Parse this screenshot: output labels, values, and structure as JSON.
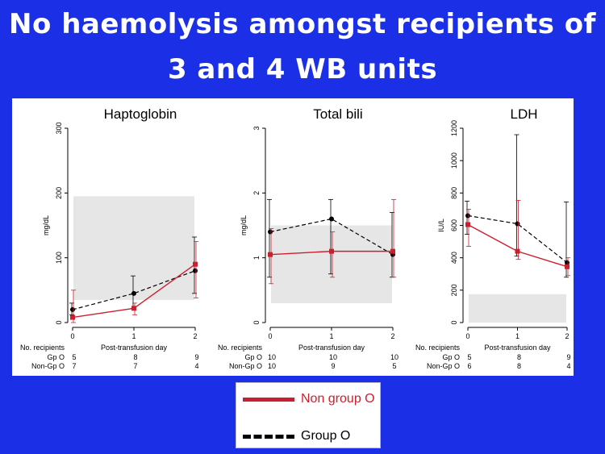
{
  "header": {
    "title_line1": "No haemolysis amongst recipients of",
    "title_line2": "3 and 4 WB units"
  },
  "legend": {
    "non_group_o": "Non group O",
    "group_o": "Group O",
    "colors": {
      "non_group_o": "#cc1f2e",
      "group_o": "#000000",
      "reference_band": "#e6e6e6"
    }
  },
  "chart_data": [
    {
      "type": "line",
      "title": "Haptoglobin",
      "xlabel": "Post-transfusion day",
      "ylabel": "mg/dL",
      "x": [
        0,
        1,
        2
      ],
      "ylim": [
        0,
        300
      ],
      "yticks": [
        0,
        100,
        200,
        300
      ],
      "reference_band": [
        35,
        195
      ],
      "series": [
        {
          "name": "Non group O",
          "values": [
            8,
            22,
            90
          ],
          "err_low": [
            0,
            12,
            38
          ],
          "err_high": [
            50,
            30,
            125
          ]
        },
        {
          "name": "Group O",
          "values": [
            20,
            45,
            80
          ],
          "err_low": [
            12,
            22,
            45
          ],
          "err_high": [
            30,
            72,
            132
          ]
        }
      ],
      "counts_header": "No. recipients",
      "counts": [
        {
          "label": "Gp O",
          "values": [
            "5",
            "8",
            "9"
          ]
        },
        {
          "label": "Non-Gp O",
          "values": [
            "7",
            "7",
            "4"
          ]
        }
      ]
    },
    {
      "type": "line",
      "title": "Total bili",
      "xlabel": "Post-transfusion day",
      "ylabel": "mg/dL",
      "x": [
        0,
        1,
        2
      ],
      "ylim": [
        0,
        3
      ],
      "yticks": [
        0,
        1,
        2,
        3
      ],
      "reference_band": [
        0.3,
        1.5
      ],
      "series": [
        {
          "name": "Non group O",
          "values": [
            1.05,
            1.1,
            1.1
          ],
          "err_low": [
            0.6,
            0.7,
            0.7
          ],
          "err_high": [
            1.45,
            1.4,
            1.9
          ]
        },
        {
          "name": "Group O",
          "values": [
            1.4,
            1.6,
            1.05
          ],
          "err_low": [
            0.7,
            0.75,
            0.7
          ],
          "err_high": [
            1.9,
            1.9,
            1.7
          ]
        }
      ],
      "counts_header": "No. recipients",
      "counts": [
        {
          "label": "Gp O",
          "values": [
            "10",
            "10",
            "10"
          ]
        },
        {
          "label": "Non-Gp O",
          "values": [
            "10",
            "9",
            "5"
          ]
        }
      ]
    },
    {
      "type": "line",
      "title": "LDH",
      "xlabel": "Post-transfusion day",
      "ylabel": "IU/L",
      "x": [
        0,
        1,
        2
      ],
      "ylim": [
        0,
        1200
      ],
      "yticks": [
        0,
        200,
        400,
        600,
        800,
        1000,
        1200
      ],
      "reference_band": [
        0,
        175
      ],
      "series": [
        {
          "name": "Non group O",
          "values": [
            605,
            440,
            345
          ],
          "err_low": [
            470,
            390,
            290
          ],
          "err_high": [
            700,
            755,
            400
          ]
        },
        {
          "name": "Group O",
          "values": [
            660,
            610,
            370
          ],
          "err_low": [
            545,
            410,
            280
          ],
          "err_high": [
            750,
            1160,
            745
          ]
        }
      ],
      "counts_header": "No. recipients",
      "counts": [
        {
          "label": "Gp O",
          "values": [
            "5",
            "8",
            "9"
          ]
        },
        {
          "label": "Non-Gp O",
          "values": [
            "6",
            "8",
            "4"
          ]
        }
      ]
    }
  ]
}
